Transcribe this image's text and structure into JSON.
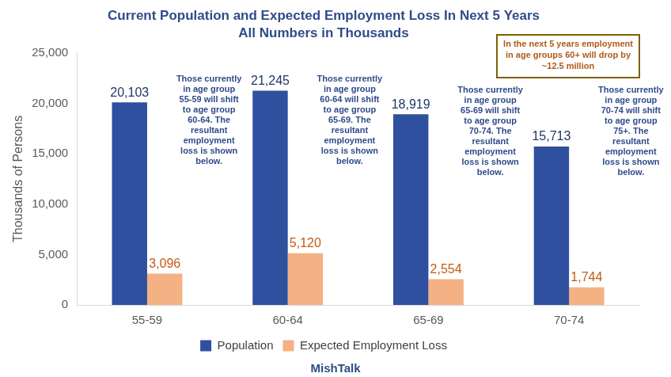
{
  "chart_data": {
    "type": "bar",
    "title": "Current Population and Expected Employment Loss In Next 5 Years",
    "subtitle": "All Numbers in Thousands",
    "y_label": "Thousands of Persons",
    "categories": [
      "55-59",
      "60-64",
      "65-69",
      "70-74"
    ],
    "series": [
      {
        "name": "Population",
        "color": "#2f4f9f",
        "values": [
          20103,
          21245,
          18919,
          15713
        ],
        "value_labels": [
          "20,103",
          "21,245",
          "18,919",
          "15,713"
        ]
      },
      {
        "name": "Expected Employment Loss",
        "color": "#f4b183",
        "values": [
          3096,
          5120,
          2554,
          1744
        ],
        "value_labels": [
          "3,096",
          "5,120",
          "2,554",
          "1,744"
        ]
      }
    ],
    "ylim": [
      0,
      25000
    ],
    "yticks": [
      0,
      {
        "value": 5000,
        "label": "5,000"
      },
      {
        "value": 10000,
        "label": "10,000"
      },
      {
        "value": 15000,
        "label": "15,000"
      },
      {
        "value": 20000,
        "label": "20,000"
      },
      {
        "value": 25000,
        "label": "25,000"
      }
    ],
    "grid": false,
    "legend": "bottom",
    "data_labels": true,
    "annotations": {
      "box": "In the next 5 years employment in age groups 60+ will drop by ~12.5 million",
      "bars": [
        "Those currently in age group 55-59 will shift to age group 60-64. The resultant employment loss is shown below.",
        "Those currently in age group 60-64 will shift to age group 65-69. The resultant employment loss is shown below.",
        "Those currently in age group 65-69 will shift to age group 70-74. The resultant employment loss is shown below.",
        "Those currently in age group 70-74 will shift to age group 75+. The resultant employment loss is shown below."
      ],
      "source": "MishTalk"
    }
  }
}
